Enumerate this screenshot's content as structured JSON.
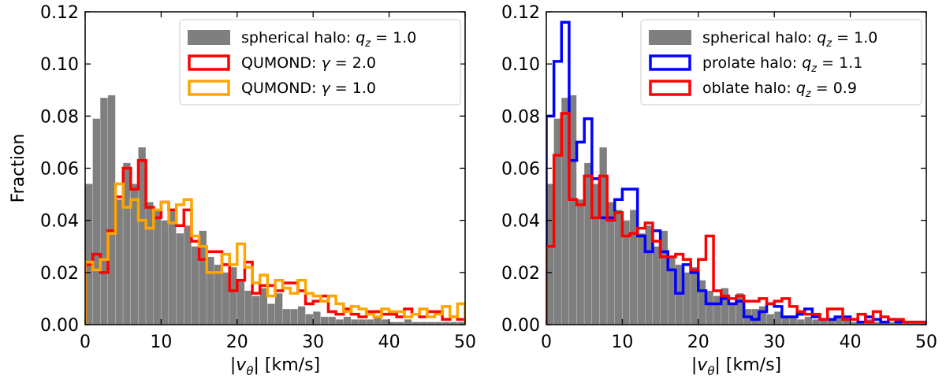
{
  "chart_data": [
    {
      "type": "histogram",
      "title": "",
      "xlabel": "|vθ| [km/s]",
      "ylabel": "Fraction",
      "xlim": [
        0,
        50
      ],
      "ylim": [
        0,
        0.12
      ],
      "xticks": [
        "0",
        "10",
        "20",
        "30",
        "40",
        "50"
      ],
      "yticks": [
        "0.00",
        "0.02",
        "0.04",
        "0.06",
        "0.08",
        "0.10",
        "0.12"
      ],
      "bin_width": 1,
      "legend_position": "top-right",
      "series": [
        {
          "name": "spherical halo: q_z = 1.0",
          "legend_label": "spherical halo: qz = 1.0",
          "style": "filled",
          "color": "#7f7f7f",
          "values": [
            0.054,
            0.079,
            0.087,
            0.088,
            0.048,
            0.062,
            0.054,
            0.068,
            0.047,
            0.044,
            0.04,
            0.044,
            0.035,
            0.038,
            0.03,
            0.036,
            0.026,
            0.023,
            0.02,
            0.022,
            0.017,
            0.013,
            0.011,
            0.014,
            0.008,
            0.012,
            0.006,
            0.006,
            0.007,
            0.004,
            0.005,
            0.003,
            0.003,
            0.002,
            0.003,
            0.002,
            0.002,
            0.002,
            0.003,
            0.002,
            0.001,
            0.001,
            0.002,
            0.001,
            0.001,
            0.001,
            0.001,
            0.001,
            0.001,
            0.001
          ]
        },
        {
          "name": "QUMOND: γ = 2.0",
          "legend_label": "QUMOND: γ = 2.0",
          "style": "step",
          "color": "#ff0000",
          "values": [
            0.023,
            0.027,
            0.02,
            0.036,
            0.049,
            0.06,
            0.052,
            0.063,
            0.045,
            0.041,
            0.047,
            0.044,
            0.038,
            0.044,
            0.032,
            0.025,
            0.028,
            0.028,
            0.023,
            0.013,
            0.017,
            0.024,
            0.012,
            0.015,
            0.015,
            0.013,
            0.016,
            0.016,
            0.013,
            0.008,
            0.009,
            0.011,
            0.005,
            0.004,
            0.006,
            0.004,
            0.003,
            0.005,
            0.005,
            0.004,
            0.004,
            0.003,
            0.006,
            0.004,
            0.003,
            0.005,
            0.005,
            0.002,
            0.003,
            0.002
          ]
        },
        {
          "name": "QUMOND: γ = 1.0",
          "legend_label": "QUMOND: γ = 1.0",
          "style": "step",
          "color": "#ffa500",
          "values": [
            0.024,
            0.021,
            0.025,
            0.035,
            0.054,
            0.045,
            0.048,
            0.04,
            0.037,
            0.044,
            0.047,
            0.039,
            0.046,
            0.048,
            0.034,
            0.03,
            0.02,
            0.02,
            0.027,
            0.023,
            0.031,
            0.022,
            0.016,
            0.019,
            0.011,
            0.017,
            0.014,
            0.012,
            0.017,
            0.012,
            0.011,
            0.009,
            0.011,
            0.008,
            0.005,
            0.007,
            0.006,
            0.004,
            0.003,
            0.006,
            0.005,
            0.005,
            0.003,
            0.004,
            0.006,
            0.003,
            0.004,
            0.007,
            0.003,
            0.008
          ]
        }
      ]
    },
    {
      "type": "histogram",
      "title": "",
      "xlabel": "|vθ| [km/s]",
      "ylabel": "",
      "xlim": [
        0,
        50
      ],
      "ylim": [
        0,
        0.12
      ],
      "xticks": [
        "0",
        "10",
        "20",
        "30",
        "40",
        "50"
      ],
      "yticks": [
        "0.00",
        "0.02",
        "0.04",
        "0.06",
        "0.08",
        "0.10",
        "0.12"
      ],
      "bin_width": 1,
      "legend_position": "top-right",
      "series": [
        {
          "name": "spherical halo: q_z = 1.0",
          "legend_label": "spherical halo: qz = 1.0",
          "style": "filled",
          "color": "#7f7f7f",
          "values": [
            0.054,
            0.079,
            0.087,
            0.088,
            0.048,
            0.062,
            0.054,
            0.068,
            0.047,
            0.044,
            0.04,
            0.044,
            0.035,
            0.038,
            0.03,
            0.036,
            0.026,
            0.023,
            0.02,
            0.022,
            0.017,
            0.013,
            0.011,
            0.014,
            0.008,
            0.012,
            0.006,
            0.006,
            0.007,
            0.004,
            0.005,
            0.003,
            0.003,
            0.002,
            0.003,
            0.002,
            0.002,
            0.002,
            0.003,
            0.002,
            0.001,
            0.001,
            0.002,
            0.001,
            0.001,
            0.001,
            0.001,
            0.001,
            0.001,
            0.001
          ]
        },
        {
          "name": "prolate halo: q_z = 1.1",
          "legend_label": "prolate halo: qz = 1.1",
          "style": "step",
          "color": "#0000ff",
          "values": [
            0.08,
            0.101,
            0.116,
            0.063,
            0.07,
            0.079,
            0.056,
            0.041,
            0.041,
            0.048,
            0.052,
            0.052,
            0.034,
            0.028,
            0.036,
            0.028,
            0.021,
            0.012,
            0.023,
            0.02,
            0.013,
            0.008,
            0.008,
            0.01,
            0.008,
            0.009,
            0.003,
            0.002,
            0.005,
            0.008,
            0.007,
            0.003,
            0.003,
            0.004,
            0.006,
            0.003,
            0.002,
            0.002,
            0.003,
            0.003,
            0.002,
            0.001,
            0.003,
            0.002,
            0.001,
            0.002,
            0.001,
            0.001,
            0.001,
            0.001
          ]
        },
        {
          "name": "oblate halo: q_z = 0.9",
          "legend_label": "oblate halo: qz = 0.9",
          "style": "step",
          "color": "#ff0000",
          "values": [
            0.03,
            0.065,
            0.081,
            0.048,
            0.046,
            0.057,
            0.041,
            0.057,
            0.04,
            0.043,
            0.034,
            0.035,
            0.037,
            0.039,
            0.032,
            0.026,
            0.026,
            0.027,
            0.025,
            0.021,
            0.025,
            0.034,
            0.013,
            0.011,
            0.01,
            0.011,
            0.009,
            0.009,
            0.01,
            0.008,
            0.009,
            0.01,
            0.007,
            0.005,
            0.004,
            0.004,
            0.002,
            0.006,
            0.006,
            0.002,
            0.002,
            0.004,
            0.001,
            0.005,
            0.003,
            0.002,
            0.002,
            0.001,
            0.001,
            0.001
          ]
        }
      ]
    }
  ]
}
